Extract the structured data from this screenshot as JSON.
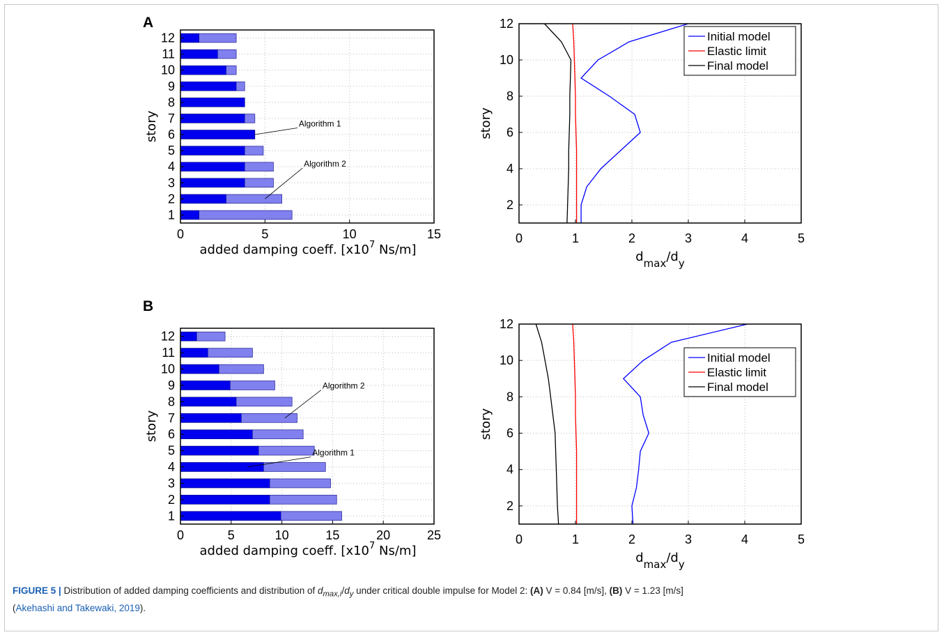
{
  "caption": {
    "label": "FIGURE 5 |",
    "text_1": " Distribution of added damping coefficients and distribution of ",
    "var_d": "d",
    "var_sub": "max,i",
    "text_2": "/",
    "var_dy": "d",
    "var_dy_sub": "y",
    "text_3": " under critical double impulse for Model 2: ",
    "part_a": "(A)",
    "text_4": " V = 0.84 [m/s], ",
    "part_b": "(B)",
    "text_5": " V = 1.23 [m/s]",
    "text_6": "(",
    "citation": "Akehashi and Takewaki, 2019",
    "text_7": ")."
  },
  "colors": {
    "algorithm1_bar": "#0000ee",
    "algorithm2_bar": "#8080ee",
    "initial_model": "#0000ff",
    "elastic_limit": "#ff0000",
    "final_model": "#000000",
    "grid": "#bbbbbb"
  },
  "chart_data": [
    {
      "id": "A-bar",
      "panel": "A",
      "type": "bar",
      "orientation": "horizontal",
      "categories": [
        "1",
        "2",
        "3",
        "4",
        "5",
        "6",
        "7",
        "8",
        "9",
        "10",
        "11",
        "12"
      ],
      "series": [
        {
          "name": "Algorithm 1",
          "values": [
            1.1,
            2.7,
            3.8,
            3.8,
            3.8,
            4.4,
            3.8,
            3.8,
            3.3,
            2.7,
            2.2,
            1.1
          ]
        },
        {
          "name": "Algorithm 2",
          "values": [
            6.6,
            6.0,
            5.5,
            5.5,
            4.9,
            4.4,
            4.4,
            3.8,
            3.8,
            3.3,
            3.3,
            3.3
          ]
        }
      ],
      "xlabel": "added damping coeff. [x10",
      "xlabel_sup": "7",
      "xlabel_tail": " Ns/m]",
      "ylabel": "story",
      "xlim": [
        0,
        15
      ],
      "xticks": [
        "0",
        "5",
        "10",
        "15"
      ],
      "grid": true,
      "annotations": [
        {
          "text": "Algorithm 1",
          "series": "Algorithm 1",
          "story": 6,
          "value": 4.4,
          "label_value": 7.0,
          "label_story": 6.5
        },
        {
          "text": "Algorithm 2",
          "series": "Algorithm 2",
          "story": 2,
          "value": 5.0,
          "label_value": 7.3,
          "label_story": 4.0
        }
      ]
    },
    {
      "id": "A-line",
      "panel": "A",
      "type": "line",
      "xlabel": "d",
      "xlabel_sub": "max",
      "xlabel_mid": "/d",
      "xlabel_sub2": "y",
      "ylabel": "story",
      "xlim": [
        0,
        5
      ],
      "ylim": [
        1,
        12
      ],
      "xticks": [
        "0",
        "1",
        "2",
        "3",
        "4",
        "5"
      ],
      "yticks": [
        "2",
        "4",
        "6",
        "8",
        "10",
        "12"
      ],
      "grid": true,
      "legend_position": "top-right",
      "series": [
        {
          "name": "Initial model",
          "x": [
            1.1,
            1.1,
            1.2,
            1.45,
            1.8,
            2.15,
            2.05,
            1.6,
            1.1,
            1.4,
            1.95,
            3.0
          ],
          "y": [
            1,
            2,
            3,
            4,
            5,
            6,
            7,
            8,
            9,
            10,
            11,
            12
          ]
        },
        {
          "name": "Elastic limit",
          "x": [
            1.02,
            1.02,
            1.02,
            1.02,
            1.02,
            1.01,
            1.0,
            1.0,
            0.99,
            0.98,
            0.97,
            0.95
          ],
          "y": [
            1,
            2,
            3,
            4,
            5,
            6,
            7,
            8,
            9,
            10,
            11,
            12
          ]
        },
        {
          "name": "Final model",
          "x": [
            0.85,
            0.86,
            0.87,
            0.88,
            0.88,
            0.89,
            0.9,
            0.9,
            0.91,
            0.92,
            0.75,
            0.45
          ],
          "y": [
            1,
            2,
            3,
            4,
            5,
            6,
            7,
            8,
            9,
            10,
            11,
            12
          ]
        }
      ]
    },
    {
      "id": "B-bar",
      "panel": "B",
      "type": "bar",
      "orientation": "horizontal",
      "categories": [
        "1",
        "2",
        "3",
        "4",
        "5",
        "6",
        "7",
        "8",
        "9",
        "10",
        "11",
        "12"
      ],
      "series": [
        {
          "name": "Algorithm 1",
          "values": [
            9.9,
            8.8,
            8.8,
            8.2,
            7.7,
            7.1,
            6.0,
            5.5,
            4.9,
            3.8,
            2.7,
            1.6
          ]
        },
        {
          "name": "Algorithm 2",
          "values": [
            15.9,
            15.4,
            14.8,
            14.3,
            13.2,
            12.1,
            11.5,
            11.0,
            9.3,
            8.2,
            7.1,
            4.4
          ]
        }
      ],
      "xlabel": "added damping coeff. [x10",
      "xlabel_sup": "7",
      "xlabel_tail": " Ns/m]",
      "ylabel": "story",
      "xlim": [
        0,
        25
      ],
      "xticks": [
        "0",
        "5",
        "10",
        "15",
        "20",
        "25"
      ],
      "grid": true,
      "annotations": [
        {
          "text": "Algorithm 2",
          "series": "Algorithm 2",
          "story": 7,
          "value": 10.3,
          "label_value": 14.0,
          "label_story": 8.8
        },
        {
          "text": "Algorithm 1",
          "series": "Algorithm 1",
          "story": 4,
          "value": 6.6,
          "label_value": 13.0,
          "label_story": 4.7
        }
      ]
    },
    {
      "id": "B-line",
      "panel": "B",
      "type": "line",
      "xlabel": "d",
      "xlabel_sub": "max",
      "xlabel_mid": "/d",
      "xlabel_sub2": "y",
      "ylabel": "story",
      "xlim": [
        0,
        5
      ],
      "ylim": [
        1,
        12
      ],
      "xticks": [
        "0",
        "1",
        "2",
        "3",
        "4",
        "5"
      ],
      "yticks": [
        "2",
        "4",
        "6",
        "8",
        "10",
        "12"
      ],
      "grid": true,
      "legend_position": "top-right",
      "series": [
        {
          "name": "Initial model",
          "x": [
            2.02,
            2.0,
            2.08,
            2.12,
            2.15,
            2.3,
            2.2,
            2.15,
            1.85,
            2.2,
            2.7,
            4.05
          ],
          "y": [
            1,
            2,
            3,
            4,
            5,
            6,
            7,
            8,
            9,
            10,
            11,
            12
          ]
        },
        {
          "name": "Elastic limit",
          "x": [
            1.02,
            1.02,
            1.02,
            1.02,
            1.02,
            1.01,
            1.0,
            1.0,
            0.99,
            0.98,
            0.97,
            0.95
          ],
          "y": [
            1,
            2,
            3,
            4,
            5,
            6,
            7,
            8,
            9,
            10,
            11,
            12
          ]
        },
        {
          "name": "Final model",
          "x": [
            0.7,
            0.68,
            0.67,
            0.66,
            0.65,
            0.64,
            0.6,
            0.56,
            0.52,
            0.46,
            0.4,
            0.3
          ],
          "y": [
            1,
            2,
            3,
            4,
            5,
            6,
            7,
            8,
            9,
            10,
            11,
            12
          ]
        }
      ]
    }
  ],
  "panel_letters": {
    "A": "A",
    "B": "B"
  }
}
